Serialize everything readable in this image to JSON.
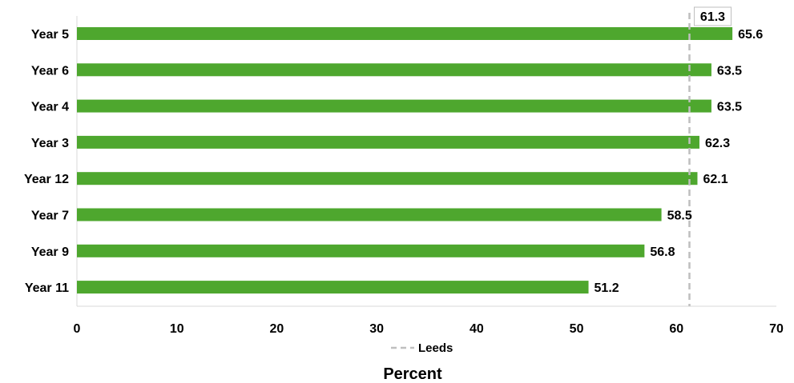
{
  "chart_data": {
    "type": "bar",
    "orientation": "horizontal",
    "title": "",
    "xlabel": "Percent",
    "ylabel": "",
    "xlim": [
      0,
      70
    ],
    "xticks": [
      0,
      10,
      20,
      30,
      40,
      50,
      60,
      70
    ],
    "grid": false,
    "categories": [
      "Year 5",
      "Year 6",
      "Year 4",
      "Year 3",
      "Year 12",
      "Year 7",
      "Year 9",
      "Year 11"
    ],
    "series": [
      {
        "values": [
          65.6,
          63.5,
          63.5,
          62.3,
          62.1,
          58.5,
          56.8,
          51.2
        ]
      }
    ],
    "data_labels": [
      "65.6",
      "63.5",
      "63.5",
      "62.3",
      "62.1",
      "58.5",
      "56.8",
      "51.2"
    ],
    "reference_line": {
      "name": "Leeds",
      "value": 61.3,
      "label": "61.3",
      "style": "dashed"
    },
    "legend": {
      "position": "bottom",
      "entries": [
        "Leeds"
      ]
    },
    "colors": {
      "bar": "#4ea72e",
      "reference": "#bfbfbf",
      "axis": "#d9d9d9"
    }
  }
}
